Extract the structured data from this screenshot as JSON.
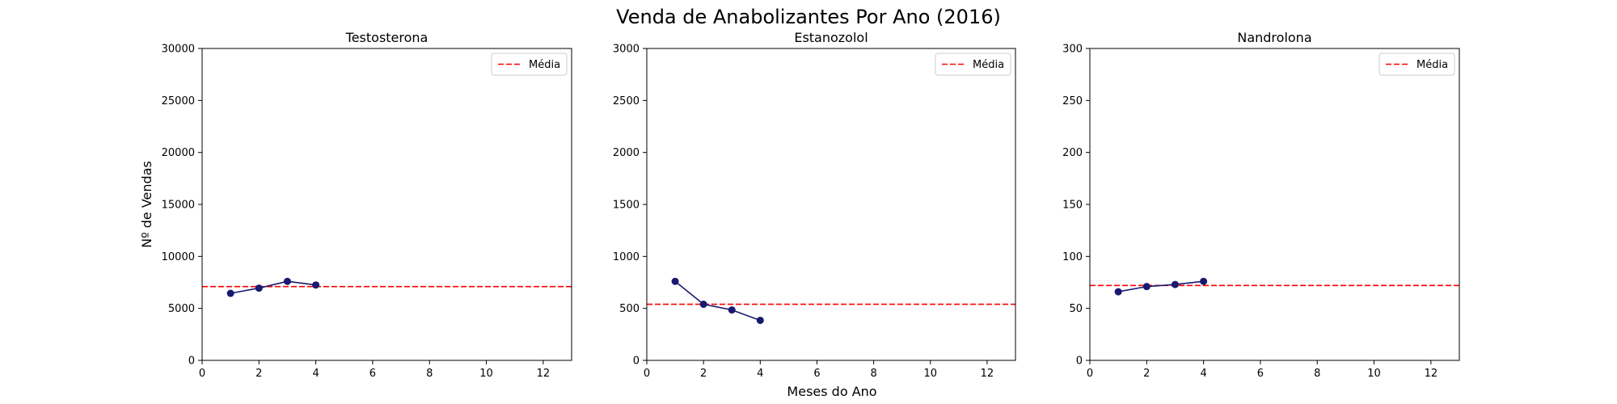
{
  "chart_data": {
    "type": "line",
    "title": "Venda de Anabolizantes Por Ano (2016)",
    "xlabel": "Meses do Ano",
    "ylabel": "Nº de Vendas",
    "grid": false,
    "line_color": "#191970",
    "mean_color": "#ff0000",
    "panels": [
      {
        "title": "Testosterona",
        "x": [
          1,
          2,
          3,
          4
        ],
        "values": [
          6450,
          6950,
          7600,
          7250
        ],
        "mean": 7100,
        "xlim": [
          0,
          13
        ],
        "ylim": [
          0,
          30000
        ],
        "xticks": [
          0,
          2,
          4,
          6,
          8,
          10,
          12
        ],
        "yticks": [
          0,
          5000,
          10000,
          15000,
          20000,
          25000,
          30000
        ],
        "legend": [
          "Média"
        ],
        "legend_position": "top-right"
      },
      {
        "title": "Estanozolol",
        "x": [
          1,
          2,
          3,
          4
        ],
        "values": [
          760,
          540,
          485,
          385
        ],
        "mean": 540,
        "xlim": [
          0,
          13
        ],
        "ylim": [
          0,
          3000
        ],
        "xticks": [
          0,
          2,
          4,
          6,
          8,
          10,
          12
        ],
        "yticks": [
          0,
          500,
          1000,
          1500,
          2000,
          2500,
          3000
        ],
        "legend": [
          "Média"
        ],
        "legend_position": "top-right"
      },
      {
        "title": "Nandrolona",
        "x": [
          1,
          2,
          3,
          4
        ],
        "values": [
          66,
          71,
          73,
          76
        ],
        "mean": 72,
        "xlim": [
          0,
          13
        ],
        "ylim": [
          0,
          300
        ],
        "xticks": [
          0,
          2,
          4,
          6,
          8,
          10,
          12
        ],
        "yticks": [
          0,
          50,
          100,
          150,
          200,
          250,
          300
        ],
        "legend": [
          "Média"
        ],
        "legend_position": "top-right"
      }
    ]
  }
}
